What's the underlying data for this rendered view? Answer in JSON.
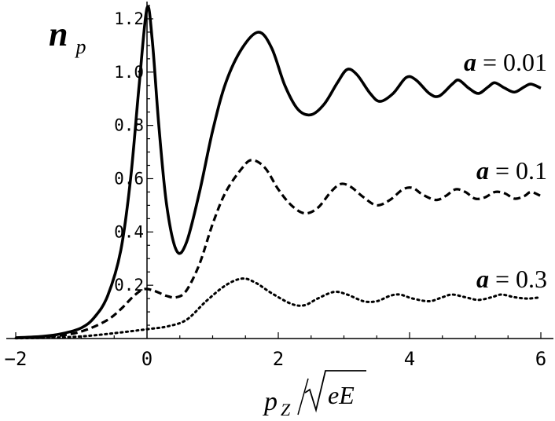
{
  "chart_data": {
    "type": "line",
    "ylabel_main": "n",
    "ylabel_sub": "p",
    "xlabel_main": "p",
    "xlabel_sub": "Z",
    "xlabel_sqrt": "eE",
    "xlim": [
      -2,
      6
    ],
    "ylim": [
      0,
      1.25
    ],
    "x_ticks": [
      -2,
      0,
      2,
      4,
      6
    ],
    "x_tick_labels": [
      "−2",
      "0",
      "2",
      "4",
      "6"
    ],
    "y_ticks": [
      0.2,
      0.4,
      0.6,
      0.8,
      1.0,
      1.2
    ],
    "y_tick_labels": [
      "0.2",
      "0.4",
      "0.6",
      "0.8",
      "1.0",
      "1.2"
    ],
    "series": [
      {
        "label_var": "a",
        "label_eq": " = ",
        "label_value": "0.01",
        "style": "solid",
        "points": [
          [
            -2,
            0.003
          ],
          [
            -1.6,
            0.008
          ],
          [
            -1.3,
            0.018
          ],
          [
            -1.0,
            0.04
          ],
          [
            -0.8,
            0.08
          ],
          [
            -0.6,
            0.16
          ],
          [
            -0.4,
            0.33
          ],
          [
            -0.25,
            0.6
          ],
          [
            -0.12,
            0.95
          ],
          [
            0,
            1.24
          ],
          [
            0.08,
            1.12
          ],
          [
            0.18,
            0.8
          ],
          [
            0.3,
            0.5
          ],
          [
            0.45,
            0.33
          ],
          [
            0.6,
            0.36
          ],
          [
            0.8,
            0.55
          ],
          [
            1.0,
            0.78
          ],
          [
            1.2,
            0.96
          ],
          [
            1.45,
            1.09
          ],
          [
            1.7,
            1.15
          ],
          [
            1.9,
            1.09
          ],
          [
            2.1,
            0.95
          ],
          [
            2.3,
            0.86
          ],
          [
            2.5,
            0.84
          ],
          [
            2.7,
            0.88
          ],
          [
            2.9,
            0.96
          ],
          [
            3.05,
            1.01
          ],
          [
            3.2,
            0.99
          ],
          [
            3.4,
            0.92
          ],
          [
            3.55,
            0.89
          ],
          [
            3.75,
            0.92
          ],
          [
            3.95,
            0.98
          ],
          [
            4.1,
            0.97
          ],
          [
            4.3,
            0.92
          ],
          [
            4.45,
            0.91
          ],
          [
            4.65,
            0.955
          ],
          [
            4.75,
            0.97
          ],
          [
            4.9,
            0.94
          ],
          [
            5.05,
            0.92
          ],
          [
            5.2,
            0.945
          ],
          [
            5.3,
            0.96
          ],
          [
            5.45,
            0.94
          ],
          [
            5.6,
            0.925
          ],
          [
            5.75,
            0.945
          ],
          [
            5.85,
            0.955
          ],
          [
            6.0,
            0.94
          ]
        ]
      },
      {
        "label_var": "a",
        "label_eq": " = ",
        "label_value": "0.1",
        "style": "dashed",
        "points": [
          [
            -2,
            0.002
          ],
          [
            -1.6,
            0.006
          ],
          [
            -1.2,
            0.015
          ],
          [
            -0.9,
            0.035
          ],
          [
            -0.6,
            0.07
          ],
          [
            -0.4,
            0.11
          ],
          [
            -0.2,
            0.16
          ],
          [
            -0.05,
            0.185
          ],
          [
            0.1,
            0.18
          ],
          [
            0.3,
            0.16
          ],
          [
            0.45,
            0.155
          ],
          [
            0.6,
            0.18
          ],
          [
            0.8,
            0.28
          ],
          [
            1.0,
            0.43
          ],
          [
            1.2,
            0.55
          ],
          [
            1.45,
            0.64
          ],
          [
            1.6,
            0.67
          ],
          [
            1.8,
            0.64
          ],
          [
            2.0,
            0.56
          ],
          [
            2.2,
            0.5
          ],
          [
            2.4,
            0.47
          ],
          [
            2.6,
            0.49
          ],
          [
            2.8,
            0.55
          ],
          [
            2.95,
            0.58
          ],
          [
            3.1,
            0.57
          ],
          [
            3.3,
            0.53
          ],
          [
            3.5,
            0.5
          ],
          [
            3.7,
            0.52
          ],
          [
            3.9,
            0.56
          ],
          [
            4.05,
            0.565
          ],
          [
            4.2,
            0.54
          ],
          [
            4.4,
            0.52
          ],
          [
            4.55,
            0.535
          ],
          [
            4.7,
            0.56
          ],
          [
            4.85,
            0.55
          ],
          [
            5.0,
            0.525
          ],
          [
            5.15,
            0.53
          ],
          [
            5.3,
            0.55
          ],
          [
            5.45,
            0.545
          ],
          [
            5.6,
            0.525
          ],
          [
            5.75,
            0.535
          ],
          [
            5.85,
            0.55
          ],
          [
            6.0,
            0.535
          ]
        ]
      },
      {
        "label_var": "a",
        "label_eq": " = ",
        "label_value": "0.3",
        "style": "dotted",
        "points": [
          [
            -2,
            0.001
          ],
          [
            -1.5,
            0.003
          ],
          [
            -1.0,
            0.008
          ],
          [
            -0.5,
            0.02
          ],
          [
            0,
            0.035
          ],
          [
            0.3,
            0.045
          ],
          [
            0.6,
            0.07
          ],
          [
            0.9,
            0.14
          ],
          [
            1.2,
            0.2
          ],
          [
            1.45,
            0.225
          ],
          [
            1.65,
            0.21
          ],
          [
            1.9,
            0.17
          ],
          [
            2.2,
            0.13
          ],
          [
            2.4,
            0.125
          ],
          [
            2.6,
            0.15
          ],
          [
            2.85,
            0.175
          ],
          [
            3.05,
            0.165
          ],
          [
            3.3,
            0.14
          ],
          [
            3.5,
            0.14
          ],
          [
            3.7,
            0.16
          ],
          [
            3.85,
            0.165
          ],
          [
            4.05,
            0.15
          ],
          [
            4.3,
            0.14
          ],
          [
            4.5,
            0.155
          ],
          [
            4.65,
            0.165
          ],
          [
            4.85,
            0.155
          ],
          [
            5.05,
            0.145
          ],
          [
            5.25,
            0.155
          ],
          [
            5.4,
            0.165
          ],
          [
            5.6,
            0.155
          ],
          [
            5.8,
            0.15
          ],
          [
            6.0,
            0.155
          ]
        ]
      }
    ]
  }
}
